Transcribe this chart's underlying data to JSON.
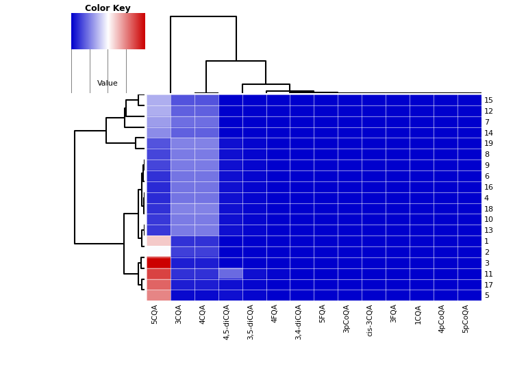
{
  "row_labels": [
    "1",
    "2",
    "15",
    "12",
    "7",
    "14",
    "3",
    "11",
    "17",
    "5",
    "19",
    "8",
    "9",
    "10",
    "13",
    "18",
    "6",
    "16",
    "4"
  ],
  "col_labels": [
    "5CQA",
    "4pCoQA",
    "5pCoQA",
    "1CQA",
    "3FQA",
    "cis-3CQA",
    "3pCoQA",
    "4FQA",
    "4,5-diCQA",
    "5FQA",
    "3,5-diCQA",
    "3,4-diCQA",
    "3CQA",
    "4CQA"
  ],
  "title": "Color Key",
  "colorbar_label": "Value",
  "data": [
    [
      95,
      3,
      3,
      3,
      3,
      3,
      3,
      3,
      3,
      3,
      3,
      3,
      18,
      18
    ],
    [
      78,
      3,
      3,
      3,
      3,
      3,
      3,
      3,
      3,
      3,
      3,
      3,
      22,
      22
    ],
    [
      55,
      3,
      3,
      3,
      3,
      3,
      3,
      3,
      3,
      3,
      3,
      3,
      28,
      28
    ],
    [
      55,
      3,
      3,
      3,
      3,
      3,
      3,
      3,
      3,
      3,
      3,
      3,
      32,
      32
    ],
    [
      50,
      3,
      3,
      3,
      3,
      3,
      3,
      3,
      3,
      3,
      3,
      3,
      36,
      36
    ],
    [
      45,
      3,
      3,
      3,
      3,
      3,
      3,
      3,
      3,
      3,
      3,
      3,
      32,
      32
    ],
    [
      155,
      3,
      3,
      3,
      3,
      3,
      3,
      3,
      3,
      3,
      3,
      3,
      12,
      12
    ],
    [
      135,
      3,
      3,
      3,
      3,
      3,
      3,
      5,
      35,
      3,
      8,
      3,
      18,
      18
    ],
    [
      125,
      3,
      3,
      3,
      3,
      3,
      3,
      3,
      8,
      3,
      5,
      3,
      12,
      12
    ],
    [
      115,
      3,
      3,
      3,
      3,
      3,
      3,
      3,
      8,
      3,
      5,
      3,
      6,
      6
    ],
    [
      28,
      3,
      3,
      3,
      3,
      3,
      3,
      3,
      8,
      3,
      5,
      3,
      42,
      42
    ],
    [
      24,
      3,
      3,
      3,
      3,
      3,
      3,
      3,
      8,
      3,
      5,
      3,
      40,
      40
    ],
    [
      24,
      3,
      3,
      3,
      3,
      3,
      3,
      3,
      8,
      3,
      5,
      3,
      40,
      40
    ],
    [
      20,
      3,
      3,
      3,
      3,
      3,
      3,
      3,
      8,
      3,
      5,
      3,
      40,
      40
    ],
    [
      20,
      3,
      3,
      3,
      3,
      3,
      3,
      3,
      8,
      3,
      5,
      3,
      40,
      40
    ],
    [
      18,
      3,
      3,
      3,
      3,
      3,
      3,
      3,
      8,
      3,
      5,
      3,
      42,
      42
    ],
    [
      18,
      3,
      3,
      3,
      3,
      3,
      3,
      3,
      8,
      3,
      5,
      3,
      38,
      38
    ],
    [
      16,
      3,
      3,
      3,
      3,
      3,
      3,
      3,
      8,
      3,
      5,
      3,
      38,
      38
    ],
    [
      16,
      3,
      3,
      3,
      3,
      3,
      3,
      3,
      8,
      3,
      5,
      3,
      38,
      38
    ]
  ],
  "row_order_fixed": [
    0,
    1,
    2,
    3,
    4,
    5,
    6,
    7,
    8,
    9,
    10,
    11,
    12,
    13,
    14,
    15,
    16,
    17,
    18
  ],
  "col_order_fixed": [
    0,
    1,
    2,
    3,
    4,
    5,
    6,
    7,
    8,
    9,
    10,
    11,
    12,
    13
  ],
  "figsize": [
    7.68,
    5.39
  ],
  "dpi": 100
}
